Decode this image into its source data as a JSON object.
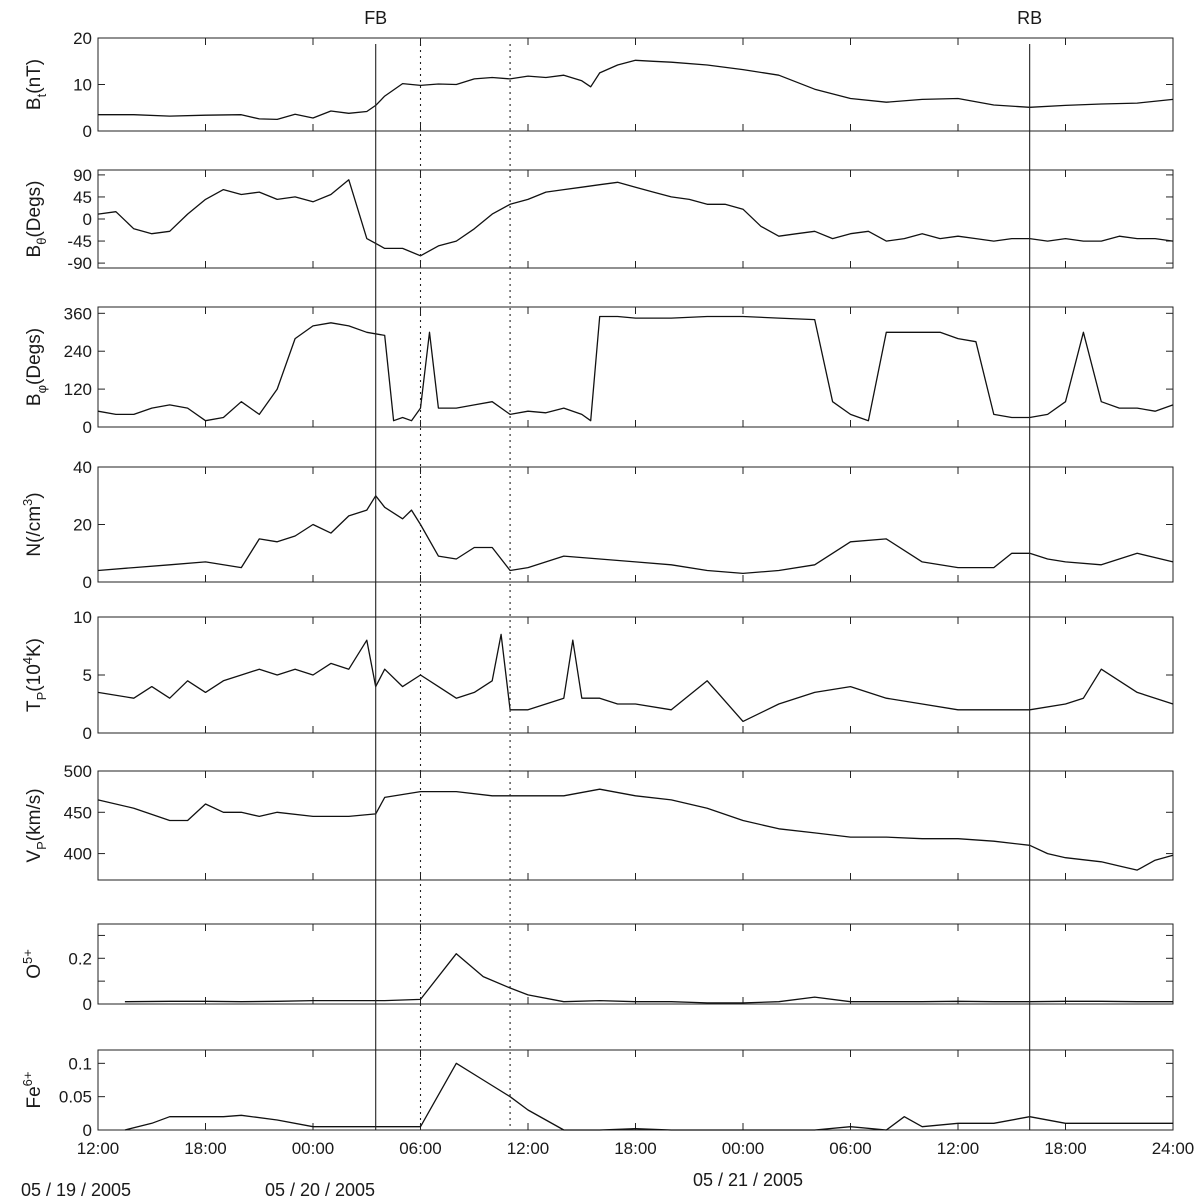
{
  "chart_data": {
    "type": "line",
    "x_axis": {
      "range_hours": [
        0,
        60
      ],
      "tick_hours": [
        0,
        6,
        12,
        18,
        24,
        30,
        36,
        42,
        48,
        54,
        60
      ],
      "tick_labels": [
        "12:00",
        "18:00",
        "00:00",
        "06:00",
        "12:00",
        "18:00",
        "00:00",
        "06:00",
        "12:00",
        "18:00",
        "24:00"
      ],
      "dates": [
        {
          "label": "05 / 19 / 2005"
        },
        {
          "label": "05 / 20 / 2005"
        },
        {
          "label": "05 / 21 / 2005"
        }
      ]
    },
    "events": [
      {
        "label": "FB",
        "hour": 15.5,
        "style": "solid"
      },
      {
        "label": "",
        "hour": 18.0,
        "style": "dotted"
      },
      {
        "label": "",
        "hour": 23.0,
        "style": "dotted"
      },
      {
        "label": "RB",
        "hour": 52.0,
        "style": "solid"
      }
    ],
    "panels": [
      {
        "id": "bt",
        "ylabel": "B",
        "ylabel_sub": "t",
        "ylabel_rest": "(nT)",
        "ylim": [
          0,
          20
        ],
        "yticks": [
          0,
          10,
          20
        ],
        "ytick_labels": [
          "0",
          "10",
          "20"
        ],
        "series": [
          {
            "x": [
              0,
              2,
              4,
              6,
              8,
              9,
              10,
              11,
              12,
              13,
              14,
              15,
              15.5,
              16,
              17,
              18,
              19,
              20,
              21,
              22,
              23,
              24,
              25,
              26,
              27,
              27.5,
              28,
              29,
              30,
              31,
              32,
              34,
              36,
              38,
              40,
              42,
              44,
              46,
              48,
              50,
              52,
              54,
              56,
              58,
              60
            ],
            "y": [
              3.5,
              3.5,
              3.2,
              3.4,
              3.5,
              2.6,
              2.5,
              3.6,
              2.8,
              4.3,
              3.8,
              4.2,
              5.5,
              7.5,
              10.2,
              9.8,
              10.1,
              10.0,
              11.2,
              11.5,
              11.2,
              11.8,
              11.5,
              12.0,
              10.8,
              9.5,
              12.5,
              14.2,
              15.2,
              15.0,
              14.8,
              14.2,
              13.2,
              12.0,
              9.0,
              7.0,
              6.2,
              6.8,
              7.0,
              5.6,
              5.1,
              5.5,
              5.8,
              6.0,
              6.8
            ]
          }
        ]
      },
      {
        "id": "btheta",
        "ylabel": "B",
        "ylabel_sub": "θ",
        "ylabel_rest": "(Degs)",
        "ylim": [
          -100,
          100
        ],
        "yticks": [
          -90,
          -45,
          0,
          45,
          90
        ],
        "ytick_labels": [
          "-90",
          "-45",
          "0",
          "45",
          "90"
        ],
        "series": [
          {
            "x": [
              0,
              1,
              2,
              3,
              4,
              5,
              6,
              7,
              8,
              9,
              10,
              11,
              12,
              13,
              14,
              15,
              16,
              17,
              18,
              19,
              20,
              21,
              22,
              23,
              24,
              25,
              26,
              27,
              28,
              29,
              30,
              31,
              32,
              33,
              34,
              35,
              36,
              37,
              38,
              39,
              40,
              41,
              42,
              43,
              44,
              45,
              46,
              47,
              48,
              49,
              50,
              51,
              52,
              53,
              54,
              55,
              56,
              57,
              58,
              59,
              60
            ],
            "y": [
              10,
              15,
              -20,
              -30,
              -25,
              10,
              40,
              60,
              50,
              55,
              40,
              45,
              35,
              50,
              80,
              -40,
              -60,
              -60,
              -75,
              -55,
              -45,
              -20,
              10,
              30,
              40,
              55,
              60,
              65,
              70,
              75,
              65,
              55,
              45,
              40,
              30,
              30,
              20,
              -15,
              -35,
              -30,
              -25,
              -40,
              -30,
              -25,
              -45,
              -40,
              -30,
              -40,
              -35,
              -40,
              -45,
              -40,
              -40,
              -45,
              -40,
              -45,
              -45,
              -35,
              -40,
              -40,
              -45
            ]
          }
        ]
      },
      {
        "id": "bphi",
        "ylabel": "B",
        "ylabel_sub": "φ",
        "ylabel_rest": "(Degs)",
        "ylim": [
          0,
          380
        ],
        "yticks": [
          0,
          120,
          240,
          360
        ],
        "ytick_labels": [
          "0",
          "120",
          "240",
          "360"
        ],
        "series": [
          {
            "x": [
              0,
              1,
              2,
              3,
              4,
              5,
              6,
              7,
              8,
              9,
              10,
              11,
              12,
              13,
              14,
              15,
              16,
              16.5,
              17,
              17.5,
              18,
              18.5,
              19,
              20,
              21,
              22,
              23,
              24,
              25,
              26,
              27,
              27.5,
              28,
              29,
              30,
              32,
              34,
              36,
              38,
              40,
              41,
              42,
              43,
              44,
              45,
              46,
              47,
              48,
              49,
              50,
              51,
              52,
              53,
              54,
              55,
              56,
              57,
              58,
              59,
              60
            ],
            "y": [
              50,
              40,
              40,
              60,
              70,
              60,
              20,
              30,
              80,
              40,
              120,
              280,
              320,
              330,
              320,
              300,
              290,
              20,
              30,
              20,
              60,
              300,
              60,
              60,
              70,
              80,
              40,
              50,
              45,
              60,
              40,
              20,
              350,
              350,
              345,
              345,
              350,
              350,
              345,
              340,
              80,
              40,
              20,
              300,
              300,
              300,
              300,
              280,
              270,
              40,
              30,
              30,
              40,
              80,
              300,
              80,
              60,
              60,
              50,
              70
            ]
          }
        ]
      },
      {
        "id": "n",
        "ylabel": "N(/cm",
        "ylabel_sup": "3",
        "ylabel_rest": ")",
        "ylim": [
          0,
          40
        ],
        "yticks": [
          0,
          20,
          40
        ],
        "ytick_labels": [
          "0",
          "20",
          "40"
        ],
        "series": [
          {
            "x": [
              0,
              2,
              4,
              6,
              8,
              9,
              10,
              11,
              12,
              13,
              14,
              15,
              15.5,
              16,
              17,
              17.5,
              18,
              19,
              20,
              21,
              22,
              23,
              24,
              25,
              26,
              28,
              30,
              32,
              34,
              36,
              38,
              40,
              42,
              44,
              46,
              48,
              50,
              51,
              52,
              53,
              54,
              56,
              58,
              60
            ],
            "y": [
              4,
              5,
              6,
              7,
              5,
              15,
              14,
              16,
              20,
              17,
              23,
              25,
              30,
              26,
              22,
              25,
              20,
              9,
              8,
              12,
              12,
              4,
              5,
              7,
              9,
              8,
              7,
              6,
              4,
              3,
              4,
              6,
              14,
              15,
              7,
              5,
              5,
              10,
              10,
              8,
              7,
              6,
              10,
              7
            ]
          }
        ]
      },
      {
        "id": "tp",
        "ylabel": "T",
        "ylabel_sub": "P",
        "ylabel_mid": "(10",
        "ylabel_sup": "4",
        "ylabel_rest": "K)",
        "ylim": [
          0,
          10
        ],
        "yticks": [
          0,
          5,
          10
        ],
        "ytick_labels": [
          "0",
          "5",
          "10"
        ],
        "series": [
          {
            "x": [
              0,
              2,
              3,
              4,
              5,
              6,
              7,
              8,
              9,
              10,
              11,
              12,
              13,
              14,
              15,
              15.5,
              16,
              17,
              18,
              19,
              20,
              21,
              22,
              22.5,
              23,
              24,
              25,
              26,
              26.5,
              27,
              28,
              29,
              30,
              32,
              34,
              36,
              38,
              40,
              42,
              44,
              46,
              48,
              50,
              52,
              54,
              55,
              56,
              58,
              60
            ],
            "y": [
              3.5,
              3,
              4,
              3,
              4.5,
              3.5,
              4.5,
              5,
              5.5,
              5,
              5.5,
              5,
              6,
              5.5,
              8,
              4,
              5.5,
              4,
              5,
              4,
              3,
              3.5,
              4.5,
              8.5,
              2,
              2,
              2.5,
              3,
              8,
              3,
              3,
              2.5,
              2.5,
              2,
              4.5,
              1,
              2.5,
              3.5,
              4,
              3,
              2.5,
              2,
              2,
              2,
              2.5,
              3,
              5.5,
              3.5,
              2.5
            ]
          }
        ]
      },
      {
        "id": "vp",
        "ylabel": "V",
        "ylabel_sub": "P",
        "ylabel_rest": "(km/s)",
        "ylim": [
          368,
          500
        ],
        "yticks": [
          400,
          450,
          500
        ],
        "ytick_labels": [
          "400",
          "450",
          "500"
        ],
        "series": [
          {
            "x": [
              0,
              2,
              4,
              5,
              6,
              7,
              8,
              9,
              10,
              12,
              14,
              15.5,
              16,
              18,
              20,
              22,
              24,
              26,
              28,
              30,
              32,
              34,
              36,
              38,
              40,
              42,
              44,
              46,
              48,
              50,
              52,
              53,
              54,
              56,
              57,
              58,
              59,
              60
            ],
            "y": [
              465,
              455,
              440,
              440,
              460,
              450,
              450,
              445,
              450,
              445,
              445,
              448,
              468,
              475,
              475,
              470,
              470,
              470,
              478,
              470,
              465,
              455,
              440,
              430,
              425,
              420,
              420,
              418,
              418,
              415,
              410,
              400,
              395,
              390,
              385,
              380,
              392,
              398
            ]
          }
        ]
      },
      {
        "id": "o5",
        "ylabel": "O",
        "ylabel_sup": "5+",
        "ylabel_rest": "",
        "ylim": [
          0,
          0.35
        ],
        "yticks": [
          0,
          0.1,
          0.2,
          0.3
        ],
        "ytick_labels": [
          "0",
          "",
          "0.2",
          ""
        ],
        "series": [
          {
            "x": [
              1.5,
              4,
              6,
              8,
              10,
              12,
              14,
              16,
              18,
              20,
              21.5,
              23,
              24,
              26,
              28,
              30,
              32,
              34,
              36,
              38,
              40,
              42,
              44,
              46,
              48,
              50,
              52,
              54,
              56,
              58,
              60
            ],
            "y": [
              0.01,
              0.012,
              0.012,
              0.01,
              0.012,
              0.015,
              0.015,
              0.015,
              0.02,
              0.22,
              0.12,
              0.07,
              0.04,
              0.01,
              0.015,
              0.01,
              0.01,
              0.005,
              0.005,
              0.01,
              0.03,
              0.01,
              0.01,
              0.01,
              0.012,
              0.01,
              0.01,
              0.012,
              0.012,
              0.01,
              0.01
            ]
          }
        ]
      },
      {
        "id": "fe6",
        "ylabel": "Fe",
        "ylabel_sup": "6+",
        "ylabel_rest": "",
        "ylim": [
          0,
          0.12
        ],
        "yticks": [
          0,
          0.05,
          0.1
        ],
        "ytick_labels": [
          "0",
          "0.05",
          "0.1"
        ],
        "series": [
          {
            "x": [
              1.5,
              3,
              4,
              6,
              7,
              8,
              10,
              12,
              14,
              16,
              18,
              20,
              21.5,
              23,
              24,
              26,
              28,
              30,
              32,
              34,
              36,
              38,
              40,
              42,
              44,
              45,
              46,
              48,
              50,
              52,
              54,
              56,
              58,
              60
            ],
            "y": [
              0,
              0.01,
              0.02,
              0.02,
              0.02,
              0.022,
              0.015,
              0.005,
              0.005,
              0.005,
              0.005,
              0.1,
              0.075,
              0.05,
              0.03,
              0,
              0,
              0.002,
              0,
              0,
              0,
              0,
              0,
              0.005,
              0,
              0.02,
              0.005,
              0.01,
              0.01,
              0.02,
              0.01,
              0.01,
              0.01,
              0.01
            ]
          }
        ]
      }
    ]
  }
}
